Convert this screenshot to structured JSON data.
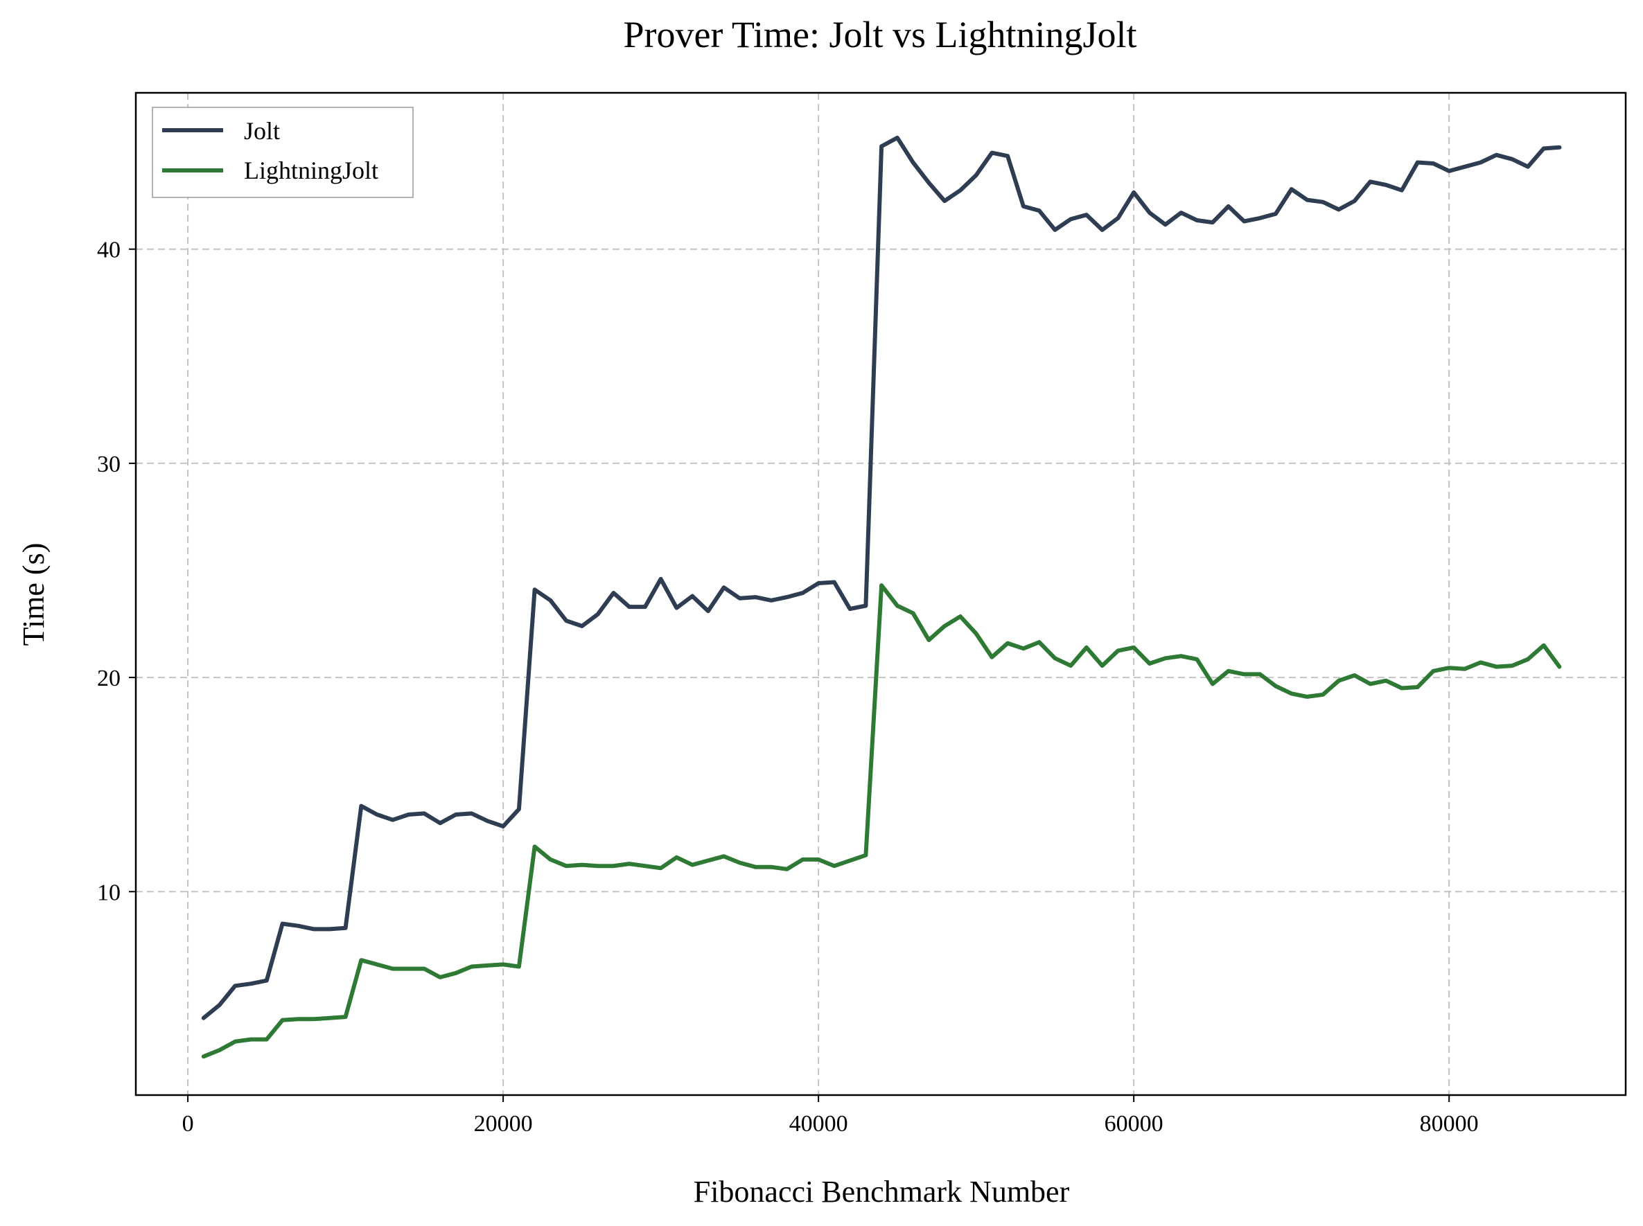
{
  "chart_data": {
    "type": "line",
    "title": "Prover Time: Jolt vs LightningJolt",
    "xlabel": "Fibonacci Benchmark Number",
    "ylabel": "Time (s)",
    "xlim": [
      -3300,
      91200
    ],
    "ylim": [
      0.5,
      47.3
    ],
    "xticks": [
      0,
      20000,
      40000,
      60000,
      80000
    ],
    "xtick_labels": [
      "0",
      "20000",
      "40000",
      "60000",
      "80000"
    ],
    "yticks": [
      10,
      20,
      30,
      40
    ],
    "ytick_labels": [
      "10",
      "20",
      "30",
      "40"
    ],
    "grid": true,
    "legend_position": "top-left",
    "x": [
      1000,
      2000,
      3000,
      4000,
      5000,
      6000,
      7000,
      8000,
      9000,
      10000,
      11000,
      12000,
      13000,
      14000,
      15000,
      16000,
      17000,
      18000,
      19000,
      20000,
      21000,
      22000,
      23000,
      24000,
      25000,
      26000,
      27000,
      28000,
      29000,
      30000,
      31000,
      32000,
      33000,
      34000,
      35000,
      36000,
      37000,
      38000,
      39000,
      40000,
      41000,
      42000,
      43000,
      44000,
      45000,
      46000,
      47000,
      48000,
      49000,
      50000,
      51000,
      52000,
      53000,
      54000,
      55000,
      56000,
      57000,
      58000,
      59000,
      60000,
      61000,
      62000,
      63000,
      64000,
      65000,
      66000,
      67000,
      68000,
      69000,
      70000,
      71000,
      72000,
      73000,
      74000,
      75000,
      76000,
      77000,
      78000,
      79000,
      80000,
      81000,
      82000,
      83000,
      84000,
      85000,
      86000,
      87000
    ],
    "series": [
      {
        "name": "Jolt",
        "color": "#2e3d52",
        "values": [
          4.1,
          4.7,
          5.6,
          5.7,
          5.85,
          8.5,
          8.4,
          8.25,
          8.25,
          8.3,
          14.0,
          13.6,
          13.35,
          13.6,
          13.65,
          13.2,
          13.6,
          13.65,
          13.3,
          13.05,
          13.85,
          24.1,
          23.6,
          22.65,
          22.4,
          22.95,
          23.95,
          23.3,
          23.3,
          24.6,
          23.25,
          23.8,
          23.1,
          24.2,
          23.7,
          23.75,
          23.6,
          23.75,
          23.95,
          24.4,
          24.45,
          23.2,
          23.35,
          44.8,
          45.2,
          44.05,
          43.1,
          42.25,
          42.75,
          43.45,
          44.5,
          44.35,
          42.0,
          41.8,
          40.9,
          41.4,
          41.6,
          40.9,
          41.45,
          42.65,
          41.7,
          41.15,
          41.7,
          41.35,
          41.25,
          42.0,
          41.3,
          41.45,
          41.65,
          42.8,
          42.3,
          42.2,
          41.85,
          42.25,
          43.15,
          43.0,
          42.75,
          44.05,
          44.0,
          43.65,
          43.85,
          44.05,
          44.4,
          44.2,
          43.85,
          44.7,
          44.75
        ]
      },
      {
        "name": "LightningJolt",
        "color": "#2e7a34",
        "values": [
          2.3,
          2.6,
          3.0,
          3.1,
          3.1,
          4.0,
          4.05,
          4.05,
          4.1,
          4.15,
          6.8,
          6.6,
          6.4,
          6.4,
          6.4,
          6.0,
          6.2,
          6.5,
          6.55,
          6.6,
          6.5,
          12.1,
          11.5,
          11.2,
          11.25,
          11.2,
          11.2,
          11.3,
          11.2,
          11.1,
          11.6,
          11.25,
          11.45,
          11.65,
          11.35,
          11.15,
          11.15,
          11.05,
          11.5,
          11.5,
          11.2,
          11.45,
          11.7,
          24.3,
          23.35,
          23.0,
          21.75,
          22.4,
          22.85,
          22.05,
          20.95,
          21.6,
          21.35,
          21.65,
          20.9,
          20.55,
          21.4,
          20.55,
          21.25,
          21.4,
          20.65,
          20.9,
          21.0,
          20.85,
          19.7,
          20.3,
          20.15,
          20.15,
          19.6,
          19.25,
          19.1,
          19.2,
          19.85,
          20.1,
          19.7,
          19.85,
          19.5,
          19.55,
          20.3,
          20.45,
          20.4,
          20.7,
          20.5,
          20.55,
          20.85,
          21.5,
          20.5
        ]
      }
    ]
  }
}
